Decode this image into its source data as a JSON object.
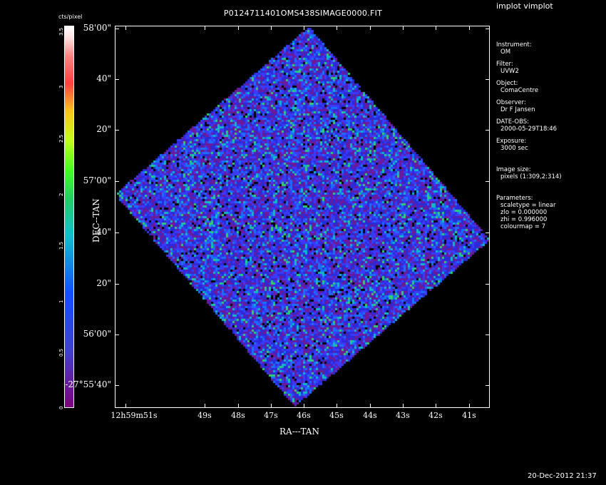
{
  "window": {
    "app_title": "implot vimplot",
    "plot_title": "P0124711401OMS438SIMAGE0000.FIT",
    "timestamp": "20-Dec-2012 21:37"
  },
  "colorbar": {
    "unit": "cts/pixel",
    "ticks": [
      "0",
      "0.5",
      "1",
      "1.5",
      "2",
      "2.5",
      "3",
      "3.5"
    ]
  },
  "axes": {
    "xlabel": "RA---TAN",
    "ylabel": "DEC--TAN",
    "yticks": [
      "58'00\"",
      "40\"",
      "20\"",
      "57'00\"",
      "40\"",
      "20\"",
      "56'00\"",
      "-27°55'40\""
    ],
    "xticks": [
      "12h59m51s",
      "49s",
      "48s",
      "47s",
      "46s",
      "45s",
      "44s",
      "43s",
      "42s",
      "41s"
    ]
  },
  "info_panel": {
    "instrument_label": "Instrument:",
    "instrument": "OM",
    "filter_label": "Filter:",
    "filter": "UVW2",
    "object_label": "Object:",
    "object": "ComaCentre",
    "observer_label": "Observer:",
    "observer": "Dr F Jansen",
    "date_label": "DATE-OBS:",
    "date": "2000-05-29T18:46",
    "exposure_label": "Exposure:",
    "exposure": "3000 sec",
    "imagesize_label": "Image size:",
    "imagesize": "pixels (1:309,2:314)",
    "params_label": "Parameters:",
    "scaletype": "scaletype = linear",
    "zlo": "zlo = 0.000000",
    "zhi": "zhi = 0.996000",
    "colourmap": "colourmap =   7"
  },
  "colors": {
    "background": "#000000",
    "foreground": "#ffffff",
    "image_base": "#2a2ad8"
  }
}
